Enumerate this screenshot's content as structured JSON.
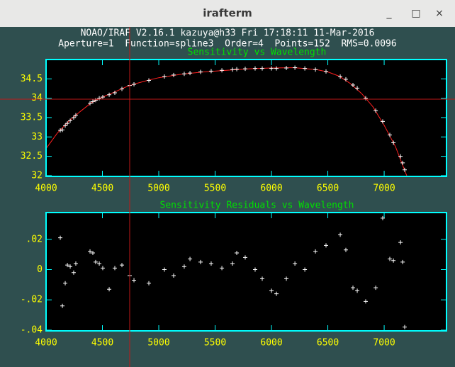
{
  "window": {
    "title": "irafterm",
    "minimize": "_",
    "maximize": "□",
    "close": "×"
  },
  "header": {
    "line1": "NOAO/IRAF V2.16.1 kazuya@h33 Fri 17:18:11 11-Mar-2016",
    "line2": "Aperture=1  Function=spline3  Order=4  Points=152  RMS=0.0096"
  },
  "chart_data": [
    {
      "type": "scatter",
      "title": "Sensitivity vs Wavelength",
      "color": "#ffffff",
      "x": [
        4126,
        4145,
        4170,
        4189,
        4214,
        4245,
        4264,
        4390,
        4415,
        4440,
        4472,
        4503,
        4560,
        4610,
        4673,
        4742,
        4780,
        4912,
        5050,
        5132,
        5226,
        5277,
        5371,
        5465,
        5560,
        5654,
        5692,
        5767,
        5855,
        5918,
        6000,
        6044,
        6132,
        6208,
        6296,
        6390,
        6484,
        6610,
        6660,
        6723,
        6761,
        6836,
        6925,
        6987,
        7050,
        7082,
        7145,
        7164,
        7182
      ],
      "values": [
        33.17,
        33.18,
        33.29,
        33.35,
        33.42,
        33.5,
        33.56,
        33.87,
        33.91,
        33.95,
        34.0,
        34.03,
        34.09,
        34.14,
        34.24,
        34.33,
        34.36,
        34.46,
        34.56,
        34.6,
        34.63,
        34.65,
        34.68,
        34.7,
        34.72,
        34.74,
        34.75,
        34.76,
        34.77,
        34.77,
        34.77,
        34.77,
        34.78,
        34.79,
        34.77,
        34.74,
        34.69,
        34.56,
        34.49,
        34.34,
        34.26,
        34.0,
        33.68,
        33.4,
        33.05,
        32.85,
        32.5,
        32.33,
        32.15
      ],
      "fit": {
        "color": "#ff2020",
        "x": [
          4000,
          4100,
          4200,
          4300,
          4400,
          4500,
          4600,
          4700,
          4800,
          4900,
          5000,
          5200,
          5400,
          5600,
          5800,
          6000,
          6200,
          6400,
          6500,
          6600,
          6700,
          6800,
          6900,
          7000,
          7100,
          7200
        ],
        "values": [
          32.7,
          33.1,
          33.4,
          33.65,
          33.88,
          34.03,
          34.15,
          34.28,
          34.38,
          34.46,
          34.53,
          34.62,
          34.68,
          34.72,
          34.76,
          34.78,
          34.79,
          34.74,
          34.68,
          34.57,
          34.38,
          34.12,
          33.78,
          33.3,
          32.75,
          32.0
        ]
      },
      "xlim": [
        4000,
        7553
      ],
      "ylim": [
        31.98,
        35.0
      ],
      "xticks": [
        4000,
        4500,
        5000,
        5500,
        6000,
        6500,
        7000
      ],
      "yticks": [
        32,
        32.5,
        33,
        33.5,
        34,
        34.5
      ]
    },
    {
      "type": "scatter",
      "title": "Sensitivity Residuals vs Wavelength",
      "color": "#ffffff",
      "x": [
        4126,
        4145,
        4170,
        4189,
        4214,
        4245,
        4264,
        4390,
        4415,
        4440,
        4472,
        4503,
        4560,
        4610,
        4673,
        4742,
        4780,
        4912,
        5050,
        5132,
        5226,
        5277,
        5371,
        5465,
        5560,
        5654,
        5692,
        5767,
        5855,
        5918,
        6000,
        6044,
        6132,
        6208,
        6296,
        6390,
        6484,
        6610,
        6660,
        6723,
        6761,
        6836,
        6925,
        6987,
        7050,
        7082,
        7145,
        7164,
        7182
      ],
      "values": [
        0.021,
        -0.024,
        -0.009,
        0.003,
        0.002,
        -0.002,
        0.004,
        0.012,
        0.011,
        0.005,
        0.004,
        0.001,
        -0.013,
        0.001,
        0.003,
        -0.004,
        -0.007,
        -0.009,
        0,
        -0.004,
        0.002,
        0.007,
        0.005,
        0.004,
        0.001,
        0.004,
        0.011,
        0.008,
        0,
        -0.006,
        -0.014,
        -0.016,
        -0.006,
        0.004,
        0,
        0.012,
        0.016,
        0.023,
        0.013,
        -0.012,
        -0.014,
        -0.021,
        -0.012,
        0.034,
        0.007,
        0.006,
        0.018,
        0.005,
        -0.038
      ],
      "xlim": [
        4000,
        7553
      ],
      "ylim": [
        -0.0405,
        0.0377
      ],
      "xticks": [
        4000,
        4500,
        5000,
        5500,
        6000,
        6500,
        7000
      ],
      "yticks": [
        {
          "value": -0.04,
          "label": "-.04"
        },
        {
          "value": -0.02,
          "label": "-.02"
        },
        0,
        {
          "value": 0.02,
          "label": ".02"
        }
      ]
    }
  ]
}
